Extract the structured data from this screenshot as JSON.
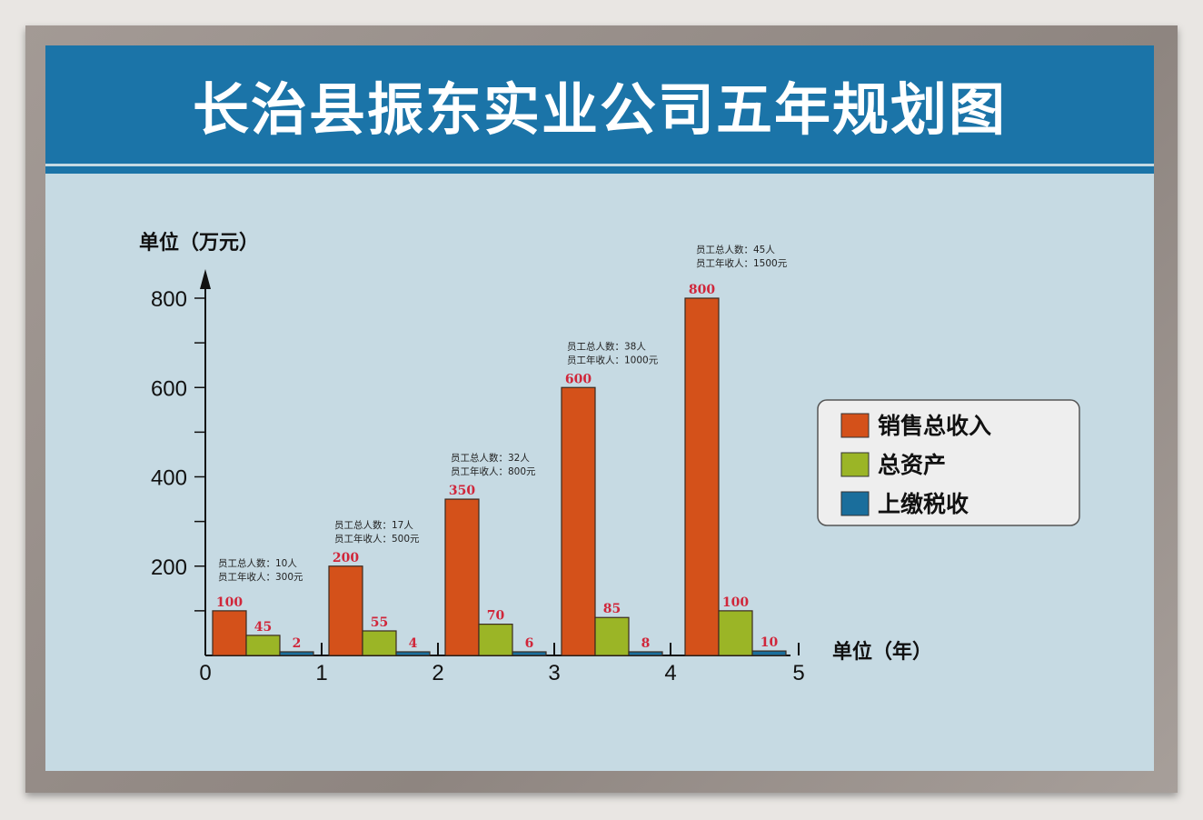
{
  "title": "长治县振东实业公司五年规划图",
  "chart_data": {
    "type": "bar",
    "title": "长治县振东实业公司五年规划图",
    "ylabel": "单位（万元）",
    "xlabel": "单位（年）",
    "ylim": [
      0,
      800
    ],
    "yticks": [
      "200",
      "400",
      "600",
      "800"
    ],
    "xticks": [
      "0",
      "1",
      "2",
      "3",
      "4",
      "5"
    ],
    "categories": [
      "1",
      "2",
      "3",
      "4",
      "5"
    ],
    "series": [
      {
        "name": "销售总收入",
        "color": "#d4511a",
        "values": [
          100,
          200,
          350,
          600,
          800
        ]
      },
      {
        "name": "总资产",
        "color": "#9bb526",
        "values": [
          45,
          55,
          70,
          85,
          100
        ]
      },
      {
        "name": "上缴税收",
        "color": "#1a6e9c",
        "values": [
          2,
          4,
          6,
          8,
          10
        ]
      }
    ],
    "annotations": [
      [
        "员工总人数：10人",
        "员工年收人：300元"
      ],
      [
        "员工总人数：17人",
        "员工年收人：500元"
      ],
      [
        "员工总人数：32人",
        "员工年收人：800元"
      ],
      [
        "员工总人数：38人",
        "员工年收人：1000元"
      ],
      [
        "员工总人数：45人",
        "员工年收人：1500元"
      ]
    ],
    "data_label_color": "#d0263a",
    "legend_position": "right",
    "grid": false
  }
}
